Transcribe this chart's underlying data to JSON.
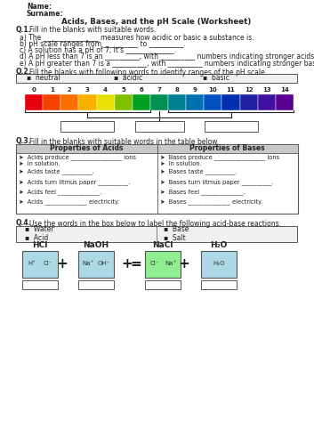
{
  "title": "Acids, Bases, and the pH Scale (Worksheet)",
  "bg_color": "#ffffff",
  "text_color": "#222222",
  "ph_colors": [
    "#e8000d",
    "#f44000",
    "#f97000",
    "#f9b000",
    "#e8e000",
    "#80c000",
    "#00a020",
    "#009050",
    "#008090",
    "#0070b0",
    "#0050c0",
    "#0030b0",
    "#2020a0",
    "#4010a0",
    "#5a0090"
  ],
  "ph_labels": [
    "0",
    "1",
    "2",
    "3",
    "4",
    "5",
    "6",
    "7",
    "8",
    "9",
    "10",
    "11",
    "12",
    "13",
    "14"
  ],
  "word_box_items": [
    "neutral",
    "acidic",
    "basic"
  ],
  "q1_lines": [
    "a) The ________________ measures how acidic or basic a substance is.",
    "b) pH scale ranges from __________ to __________.",
    "c) A solution has a pH of 7, it's ______________.",
    "d) A pH less than 7 is an __________, with __________ numbers indicating stronger acids.",
    "e) A pH greater than 7 is a __________, with __________ numbers indicating stronger bases."
  ],
  "q3_acids": [
    "Acids produce _________________ ions\nin solution.",
    "Acids taste __________.",
    "Acids turn litmus paper __________.",
    "Acids feel ______________.",
    "Acids ______________ electricity."
  ],
  "q3_bases": [
    "Bases produce _________________ ions\nin solution.",
    "Bases taste __________.",
    "Bases turn litmus paper __________.",
    "Bases feel ______________.",
    "Bases ______________ electricity."
  ],
  "q4_words_left": [
    "Water",
    "Acid"
  ],
  "q4_words_right": [
    "Base",
    "Salt"
  ],
  "reaction_labels": [
    "HCl",
    "NaOH",
    "NaCl",
    "H₂O"
  ],
  "reaction_colors": [
    "#add8e6",
    "#add8e6",
    "#90ee90",
    "#add8e6"
  ],
  "reaction_ion_left": [
    [
      "H⁺",
      "Cl⁻"
    ],
    [
      "Na⁺",
      "OH⁻"
    ],
    [
      "Cl⁻",
      "Na⁺"
    ],
    [
      "H₂O"
    ]
  ],
  "gray_header": "#c8c8c8",
  "light_gray": "#f0f0f0"
}
